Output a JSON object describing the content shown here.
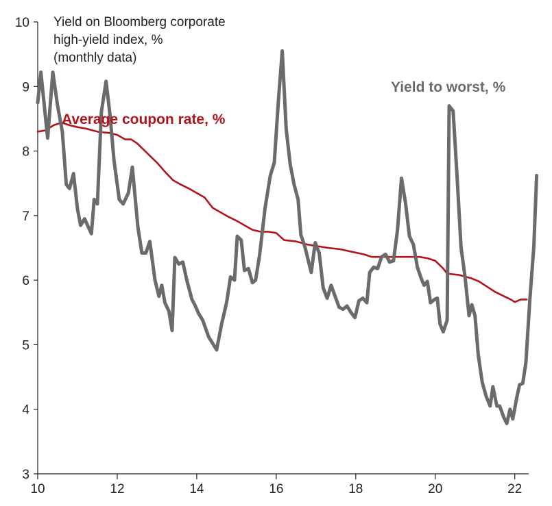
{
  "chart_data": {
    "type": "line",
    "title": [
      "Yield on Bloomberg corporate",
      "high-yield index, %",
      "(monthly data)"
    ],
    "xlabel": "",
    "ylabel": "",
    "xlim": [
      2010,
      2022.35
    ],
    "ylim": [
      3,
      10
    ],
    "y_ticks": [
      3,
      4,
      5,
      6,
      7,
      8,
      9,
      10
    ],
    "x_ticks": [
      {
        "value": 2010,
        "label": "10"
      },
      {
        "value": 2012,
        "label": "12"
      },
      {
        "value": 2014,
        "label": "14"
      },
      {
        "value": 2016,
        "label": "16"
      },
      {
        "value": 2018,
        "label": "18"
      },
      {
        "value": 2020,
        "label": "20"
      },
      {
        "value": 2022,
        "label": "22"
      }
    ],
    "grid": false,
    "series": [
      {
        "name": "Average coupon rate, %",
        "color": "#b3141b",
        "points": [
          [
            2010.0,
            8.3
          ],
          [
            2010.2,
            8.32
          ],
          [
            2010.4,
            8.4
          ],
          [
            2010.6,
            8.44
          ],
          [
            2010.8,
            8.4
          ],
          [
            2011.0,
            8.37
          ],
          [
            2011.2,
            8.35
          ],
          [
            2011.5,
            8.3
          ],
          [
            2011.8,
            8.28
          ],
          [
            2012.0,
            8.25
          ],
          [
            2012.2,
            8.18
          ],
          [
            2012.35,
            8.18
          ],
          [
            2012.5,
            8.12
          ],
          [
            2012.7,
            8.0
          ],
          [
            2012.9,
            7.88
          ],
          [
            2013.0,
            7.82
          ],
          [
            2013.2,
            7.68
          ],
          [
            2013.4,
            7.55
          ],
          [
            2013.6,
            7.48
          ],
          [
            2013.8,
            7.42
          ],
          [
            2014.0,
            7.35
          ],
          [
            2014.2,
            7.28
          ],
          [
            2014.4,
            7.12
          ],
          [
            2014.6,
            7.05
          ],
          [
            2014.8,
            6.98
          ],
          [
            2015.0,
            6.92
          ],
          [
            2015.2,
            6.85
          ],
          [
            2015.4,
            6.78
          ],
          [
            2015.6,
            6.75
          ],
          [
            2015.8,
            6.75
          ],
          [
            2016.0,
            6.73
          ],
          [
            2016.2,
            6.62
          ],
          [
            2016.5,
            6.6
          ],
          [
            2016.8,
            6.55
          ],
          [
            2017.0,
            6.53
          ],
          [
            2017.3,
            6.5
          ],
          [
            2017.6,
            6.48
          ],
          [
            2017.9,
            6.44
          ],
          [
            2018.2,
            6.4
          ],
          [
            2018.4,
            6.36
          ],
          [
            2018.7,
            6.36
          ],
          [
            2019.0,
            6.36
          ],
          [
            2019.3,
            6.36
          ],
          [
            2019.6,
            6.36
          ],
          [
            2019.8,
            6.34
          ],
          [
            2020.0,
            6.3
          ],
          [
            2020.2,
            6.18
          ],
          [
            2020.3,
            6.1
          ],
          [
            2020.6,
            6.08
          ],
          [
            2020.9,
            6.03
          ],
          [
            2021.1,
            5.98
          ],
          [
            2021.3,
            5.9
          ],
          [
            2021.5,
            5.82
          ],
          [
            2021.7,
            5.76
          ],
          [
            2021.9,
            5.7
          ],
          [
            2022.0,
            5.66
          ],
          [
            2022.15,
            5.7
          ],
          [
            2022.3,
            5.7
          ]
        ]
      },
      {
        "name": "Yield to worst, %",
        "color": "#6b6b6b",
        "points": [
          [
            2010.0,
            8.75
          ],
          [
            2010.08,
            9.22
          ],
          [
            2010.18,
            8.62
          ],
          [
            2010.25,
            8.2
          ],
          [
            2010.38,
            9.22
          ],
          [
            2010.5,
            8.7
          ],
          [
            2010.62,
            8.3
          ],
          [
            2010.72,
            7.48
          ],
          [
            2010.8,
            7.42
          ],
          [
            2010.9,
            7.65
          ],
          [
            2011.0,
            7.1
          ],
          [
            2011.08,
            6.85
          ],
          [
            2011.18,
            6.95
          ],
          [
            2011.35,
            6.72
          ],
          [
            2011.42,
            7.25
          ],
          [
            2011.5,
            7.18
          ],
          [
            2011.6,
            8.6
          ],
          [
            2011.72,
            9.08
          ],
          [
            2011.82,
            8.55
          ],
          [
            2011.92,
            7.85
          ],
          [
            2012.05,
            7.25
          ],
          [
            2012.15,
            7.18
          ],
          [
            2012.28,
            7.35
          ],
          [
            2012.38,
            7.75
          ],
          [
            2012.52,
            6.82
          ],
          [
            2012.62,
            6.42
          ],
          [
            2012.72,
            6.42
          ],
          [
            2012.82,
            6.6
          ],
          [
            2012.95,
            6.0
          ],
          [
            2013.05,
            5.75
          ],
          [
            2013.12,
            5.92
          ],
          [
            2013.2,
            5.65
          ],
          [
            2013.3,
            5.52
          ],
          [
            2013.38,
            5.22
          ],
          [
            2013.45,
            6.35
          ],
          [
            2013.55,
            6.25
          ],
          [
            2013.65,
            6.28
          ],
          [
            2013.75,
            6.0
          ],
          [
            2013.88,
            5.7
          ],
          [
            2013.95,
            5.62
          ],
          [
            2014.05,
            5.48
          ],
          [
            2014.15,
            5.38
          ],
          [
            2014.3,
            5.12
          ],
          [
            2014.42,
            5.0
          ],
          [
            2014.5,
            4.92
          ],
          [
            2014.62,
            5.3
          ],
          [
            2014.75,
            5.65
          ],
          [
            2014.85,
            6.05
          ],
          [
            2014.95,
            6.0
          ],
          [
            2015.02,
            6.68
          ],
          [
            2015.12,
            6.62
          ],
          [
            2015.2,
            6.15
          ],
          [
            2015.3,
            6.18
          ],
          [
            2015.4,
            5.96
          ],
          [
            2015.48,
            6.0
          ],
          [
            2015.58,
            6.38
          ],
          [
            2015.72,
            7.12
          ],
          [
            2015.85,
            7.62
          ],
          [
            2015.95,
            7.82
          ],
          [
            2016.05,
            8.75
          ],
          [
            2016.15,
            9.55
          ],
          [
            2016.25,
            8.35
          ],
          [
            2016.35,
            7.8
          ],
          [
            2016.45,
            7.48
          ],
          [
            2016.55,
            7.25
          ],
          [
            2016.62,
            6.7
          ],
          [
            2016.72,
            6.52
          ],
          [
            2016.8,
            6.32
          ],
          [
            2016.88,
            6.12
          ],
          [
            2016.98,
            6.58
          ],
          [
            2017.08,
            6.42
          ],
          [
            2017.18,
            5.88
          ],
          [
            2017.28,
            5.72
          ],
          [
            2017.38,
            5.92
          ],
          [
            2017.48,
            5.75
          ],
          [
            2017.58,
            5.58
          ],
          [
            2017.68,
            5.55
          ],
          [
            2017.78,
            5.6
          ],
          [
            2017.88,
            5.5
          ],
          [
            2017.98,
            5.42
          ],
          [
            2018.08,
            5.68
          ],
          [
            2018.18,
            5.72
          ],
          [
            2018.28,
            5.65
          ],
          [
            2018.35,
            6.12
          ],
          [
            2018.45,
            6.2
          ],
          [
            2018.55,
            6.18
          ],
          [
            2018.65,
            6.36
          ],
          [
            2018.75,
            6.4
          ],
          [
            2018.85,
            6.28
          ],
          [
            2018.95,
            6.3
          ],
          [
            2019.05,
            6.78
          ],
          [
            2019.15,
            7.58
          ],
          [
            2019.25,
            7.2
          ],
          [
            2019.35,
            6.68
          ],
          [
            2019.45,
            6.55
          ],
          [
            2019.55,
            6.2
          ],
          [
            2019.65,
            6.02
          ],
          [
            2019.72,
            5.92
          ],
          [
            2019.8,
            5.98
          ],
          [
            2019.88,
            5.65
          ],
          [
            2019.98,
            5.7
          ],
          [
            2020.05,
            5.72
          ],
          [
            2020.12,
            5.32
          ],
          [
            2020.2,
            5.2
          ],
          [
            2020.3,
            5.38
          ],
          [
            2020.35,
            8.7
          ],
          [
            2020.45,
            8.62
          ],
          [
            2020.55,
            7.6
          ],
          [
            2020.65,
            6.5
          ],
          [
            2020.75,
            6.05
          ],
          [
            2020.85,
            5.45
          ],
          [
            2020.92,
            5.62
          ],
          [
            2021.0,
            5.45
          ],
          [
            2021.08,
            4.85
          ],
          [
            2021.18,
            4.42
          ],
          [
            2021.28,
            4.2
          ],
          [
            2021.38,
            4.05
          ],
          [
            2021.45,
            4.35
          ],
          [
            2021.55,
            4.05
          ],
          [
            2021.62,
            4.05
          ],
          [
            2021.72,
            3.88
          ],
          [
            2021.8,
            3.78
          ],
          [
            2021.88,
            4.0
          ],
          [
            2021.95,
            3.85
          ],
          [
            2022.05,
            4.18
          ],
          [
            2022.12,
            4.38
          ],
          [
            2022.2,
            4.4
          ],
          [
            2022.28,
            4.72
          ],
          [
            2022.38,
            5.7
          ],
          [
            2022.48,
            6.52
          ],
          [
            2022.55,
            7.62
          ]
        ]
      }
    ],
    "annotations": [
      {
        "text": "Average coupon rate, %",
        "series": "Average coupon rate, %"
      },
      {
        "text": "Yield to worst, %",
        "series": "Yield to worst, %"
      }
    ]
  }
}
